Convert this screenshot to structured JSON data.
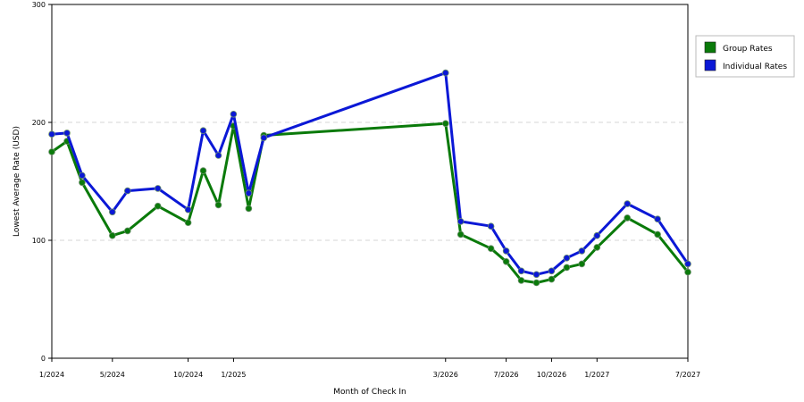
{
  "chart_data": {
    "type": "line",
    "title": "",
    "xlabel": "Month of Check In",
    "ylabel": "Lowest Average Rate (USD)",
    "ylim": [
      0,
      300
    ],
    "y_ticks": [
      0,
      100,
      200,
      300
    ],
    "x_tick_labels": [
      "1/2024",
      "5/2024",
      "10/2024",
      "1/2025",
      "3/2026",
      "7/2026",
      "10/2026",
      "1/2027",
      "7/2027"
    ],
    "grid": "horizontal dashed at y ticks",
    "legend_position": "right",
    "x": [
      "1/2024",
      "2/2024",
      "3/2024",
      "5/2024",
      "6/2024",
      "8/2024",
      "10/2024",
      "11/2024",
      "12/2024",
      "1/2025",
      "2/2025",
      "3/2025",
      "3/2026",
      "4/2026",
      "6/2026",
      "7/2026",
      "8/2026",
      "9/2026",
      "10/2026",
      "11/2026",
      "12/2026",
      "1/2027",
      "3/2027",
      "5/2027",
      "7/2027"
    ],
    "series": [
      {
        "name": "Group Rates",
        "color": "#0a7a0a",
        "values": [
          175,
          184,
          149,
          104,
          108,
          129,
          115,
          159,
          130,
          197,
          127,
          189,
          199,
          105,
          93,
          82,
          66,
          64,
          67,
          77,
          80,
          94,
          119,
          105,
          73
        ]
      },
      {
        "name": "Individual Rates",
        "color": "#0b18d6",
        "values": [
          190,
          191,
          155,
          124,
          142,
          144,
          126,
          193,
          172,
          207,
          140,
          187,
          242,
          116,
          112,
          91,
          74,
          71,
          74,
          85,
          91,
          104,
          131,
          118,
          80
        ]
      }
    ]
  }
}
